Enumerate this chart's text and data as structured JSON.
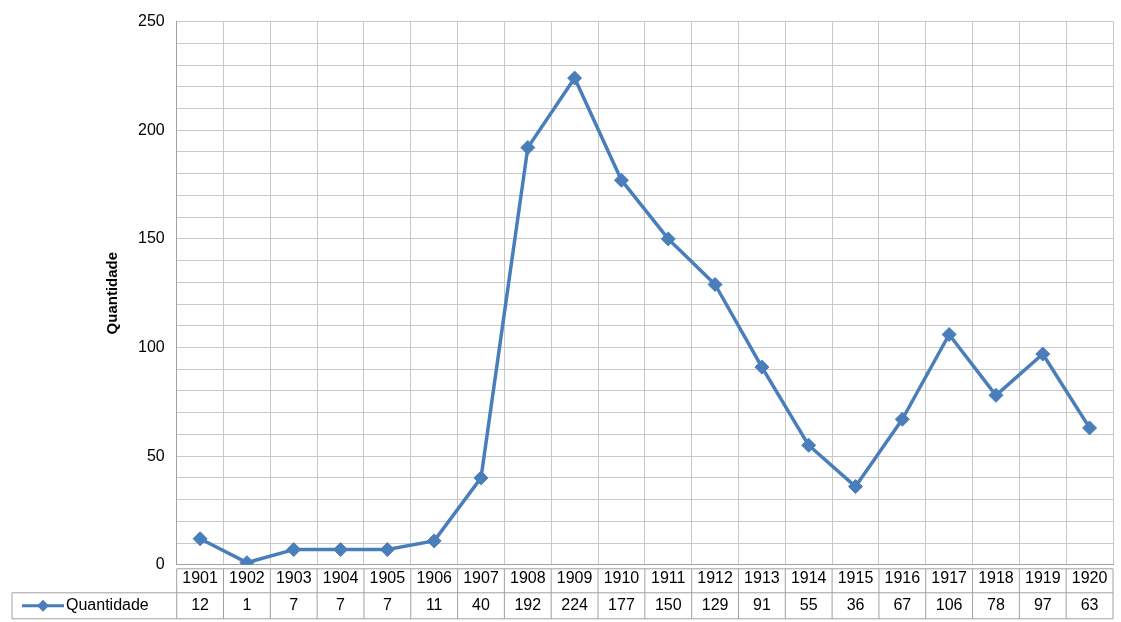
{
  "chart_data": {
    "type": "line",
    "ylabel": "Quantidade",
    "categories": [
      "1901",
      "1902",
      "1903",
      "1904",
      "1905",
      "1906",
      "1907",
      "1908",
      "1909",
      "1910",
      "1911",
      "1912",
      "1913",
      "1914",
      "1915",
      "1916",
      "1917",
      "1918",
      "1919",
      "1920"
    ],
    "series": [
      {
        "name": "Quantidade",
        "color": "#4a7ebb",
        "values": [
          12,
          1,
          7,
          7,
          7,
          11,
          40,
          192,
          224,
          177,
          150,
          129,
          91,
          55,
          36,
          67,
          106,
          78,
          97,
          63
        ]
      }
    ],
    "ylim": [
      0,
      250
    ],
    "yticks": [
      0,
      {
        "value": 10,
        "label": null
      },
      {
        "value": 20,
        "label": null
      },
      {
        "value": 30,
        "label": null
      },
      {
        "value": 40,
        "label": null
      },
      50,
      {
        "value": 60,
        "label": null
      },
      {
        "value": 70,
        "label": null
      },
      {
        "value": 80,
        "label": null
      },
      {
        "value": 90,
        "label": null
      },
      100,
      {
        "value": 110,
        "label": null
      },
      {
        "value": 120,
        "label": null
      },
      {
        "value": 130,
        "label": null
      },
      {
        "value": 140,
        "label": null
      },
      150,
      {
        "value": 160,
        "label": null
      },
      {
        "value": 170,
        "label": null
      },
      {
        "value": 180,
        "label": null
      },
      {
        "value": 190,
        "label": null
      },
      200,
      {
        "value": 210,
        "label": null
      },
      {
        "value": 220,
        "label": null
      },
      {
        "value": 230,
        "label": null
      },
      {
        "value": 240,
        "label": null
      },
      250
    ],
    "grid": true,
    "legend": "bottom left",
    "marker": "diamond",
    "line_style": "solid",
    "data_labels": true
  }
}
